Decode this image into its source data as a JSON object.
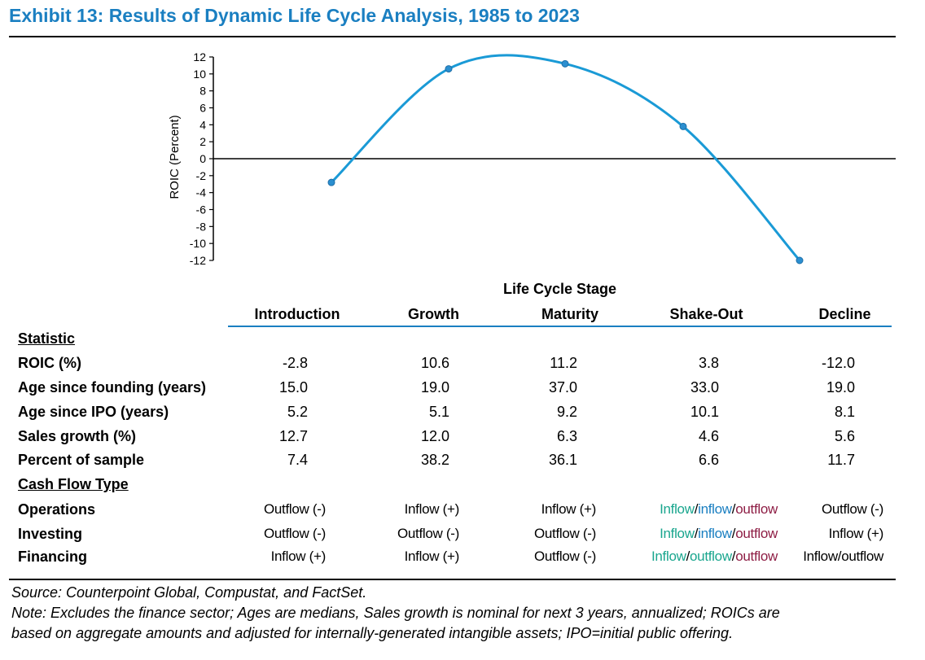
{
  "title": "Exhibit 13: Results of Dynamic Life Cycle Analysis, 1985 to 2023",
  "colors": {
    "accent": "#1a7fc1",
    "inflow": "#1aa68e",
    "outflow": "#8e1e45"
  },
  "chart_data": {
    "type": "line",
    "smooth": true,
    "categories": [
      "Introduction",
      "Growth",
      "Maturity",
      "Shake-Out",
      "Decline"
    ],
    "values": [
      -2.8,
      10.6,
      11.2,
      3.8,
      -12.0
    ],
    "ylabel": "ROIC (Percent)",
    "ylim": [
      -12,
      12
    ],
    "yticks": [
      "12",
      "10",
      "8",
      "6",
      "4",
      "2",
      "0",
      "-2",
      "-4",
      "-6",
      "-8",
      "-10",
      "-12"
    ],
    "zero_line": true,
    "grid": false,
    "line_color": "#1a9ad6"
  },
  "table": {
    "stage_header": "Life Cycle Stage",
    "stages": [
      "Introduction",
      "Growth",
      "Maturity",
      "Shake-Out",
      "Decline"
    ],
    "statistic_header": "Statistic",
    "stats": [
      {
        "label": "ROIC (%)",
        "values": [
          "-2.8",
          "10.6",
          "11.2",
          "3.8",
          "-12.0"
        ]
      },
      {
        "label": "Age since founding (years)",
        "values": [
          "15.0",
          "19.0",
          "37.0",
          "33.0",
          "19.0"
        ]
      },
      {
        "label": "Age since IPO (years)",
        "values": [
          "5.2",
          "5.1",
          "9.2",
          "10.1",
          "8.1"
        ]
      },
      {
        "label": "Sales growth (%)",
        "values": [
          "12.7",
          "12.0",
          "6.3",
          "4.6",
          "5.6"
        ]
      },
      {
        "label": "Percent of sample",
        "values": [
          "7.4",
          "38.2",
          "36.1",
          "6.6",
          "11.7"
        ]
      }
    ],
    "cashflow_header": "Cash Flow Type",
    "cashflow": [
      {
        "label": "Operations",
        "values": [
          "Outflow (-)",
          "Inflow (+)",
          "Inflow (+)",
          "Inflow/inflow/outflow",
          "Outflow (-)"
        ],
        "shakeout_parts": [
          "Inflow",
          "/",
          "inflow",
          "/",
          "outflow"
        ]
      },
      {
        "label": "Investing",
        "values": [
          "Outflow (-)",
          "Outflow (-)",
          "Outflow (-)",
          "Inflow/inflow/outflow",
          "Inflow (+)"
        ],
        "shakeout_parts": [
          "Inflow",
          "/",
          "inflow",
          "/",
          "outflow"
        ]
      },
      {
        "label": "Financing",
        "values": [
          "Inflow (+)",
          "Inflow (+)",
          "Outflow (-)",
          "Inflow/outflow/outflow",
          "Inflow/outflow"
        ],
        "shakeout_parts": [
          "Inflow",
          "/",
          "outflow",
          "/",
          "outflow"
        ]
      }
    ]
  },
  "source": "Source: Counterpoint Global, Compustat, and FactSet.",
  "note_line1": "Note: Excludes the finance sector; Ages are medians, Sales growth is nominal for next 3 years, annualized; ROICs are",
  "note_line2": "based on aggregate amounts and adjusted for internally-generated intangible assets; IPO=initial public offering."
}
